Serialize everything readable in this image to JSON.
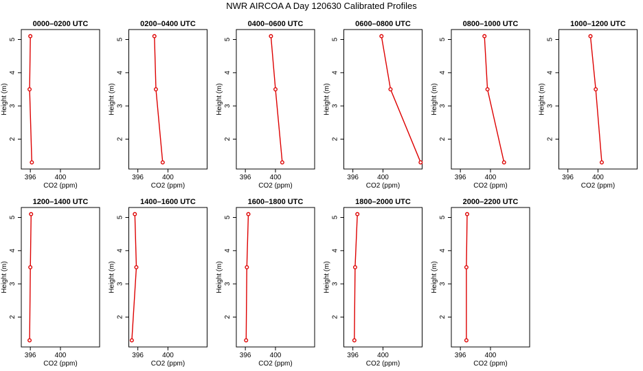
{
  "figure": {
    "title": "NWR AIRCOA A  Day 120630  Calibrated Profiles"
  },
  "chart_data": [
    {
      "type": "line",
      "title": "0000–0200 UTC",
      "xlabel": "CO2 (ppm)",
      "ylabel": "Height (m)",
      "xlim": [
        394.8,
        405.2
      ],
      "ylim": [
        1.1,
        5.3
      ],
      "xticks": [
        396,
        400
      ],
      "yticks": [
        2,
        3,
        4,
        5
      ],
      "color": "#dd0000",
      "points": [
        {
          "x": 396.2,
          "y": 1.3
        },
        {
          "x": 395.9,
          "y": 3.5
        },
        {
          "x": 396.0,
          "y": 5.1
        }
      ]
    },
    {
      "type": "line",
      "title": "0200–0400 UTC",
      "xlabel": "CO2 (ppm)",
      "ylabel": "Height (m)",
      "xlim": [
        394.8,
        405.2
      ],
      "ylim": [
        1.1,
        5.3
      ],
      "xticks": [
        396,
        400
      ],
      "yticks": [
        2,
        3,
        4,
        5
      ],
      "color": "#dd0000",
      "points": [
        {
          "x": 399.3,
          "y": 1.3
        },
        {
          "x": 398.4,
          "y": 3.5
        },
        {
          "x": 398.2,
          "y": 5.1
        }
      ]
    },
    {
      "type": "line",
      "title": "0400–0600 UTC",
      "xlabel": "CO2 (ppm)",
      "ylabel": "Height (m)",
      "xlim": [
        394.8,
        405.2
      ],
      "ylim": [
        1.1,
        5.3
      ],
      "xticks": [
        396,
        400
      ],
      "yticks": [
        2,
        3,
        4,
        5
      ],
      "color": "#dd0000",
      "points": [
        {
          "x": 400.9,
          "y": 1.3
        },
        {
          "x": 400.0,
          "y": 3.5
        },
        {
          "x": 399.4,
          "y": 5.1
        }
      ]
    },
    {
      "type": "line",
      "title": "0600–0800 UTC",
      "xlabel": "CO2 (ppm)",
      "ylabel": "Height (m)",
      "xlim": [
        394.8,
        405.2
      ],
      "ylim": [
        1.1,
        5.3
      ],
      "xticks": [
        396,
        400
      ],
      "yticks": [
        2,
        3,
        4,
        5
      ],
      "color": "#dd0000",
      "points": [
        {
          "x": 405.0,
          "y": 1.3
        },
        {
          "x": 401.0,
          "y": 3.5
        },
        {
          "x": 399.8,
          "y": 5.1
        }
      ]
    },
    {
      "type": "line",
      "title": "0800–1000 UTC",
      "xlabel": "CO2 (ppm)",
      "ylabel": "Height (m)",
      "xlim": [
        394.8,
        405.2
      ],
      "ylim": [
        1.1,
        5.3
      ],
      "xticks": [
        396,
        400
      ],
      "yticks": [
        2,
        3,
        4,
        5
      ],
      "color": "#dd0000",
      "points": [
        {
          "x": 401.8,
          "y": 1.3
        },
        {
          "x": 399.6,
          "y": 3.5
        },
        {
          "x": 399.2,
          "y": 5.1
        }
      ]
    },
    {
      "type": "line",
      "title": "1000–1200 UTC",
      "xlabel": "CO2 (ppm)",
      "ylabel": "Height (m)",
      "xlim": [
        394.8,
        405.2
      ],
      "ylim": [
        1.1,
        5.3
      ],
      "xticks": [
        396,
        400
      ],
      "yticks": [
        2,
        3,
        4,
        5
      ],
      "color": "#dd0000",
      "points": [
        {
          "x": 400.5,
          "y": 1.3
        },
        {
          "x": 399.7,
          "y": 3.5
        },
        {
          "x": 399.0,
          "y": 5.1
        }
      ]
    },
    {
      "type": "line",
      "title": "1200–1400 UTC",
      "xlabel": "CO2 (ppm)",
      "ylabel": "Height (m)",
      "xlim": [
        394.8,
        405.2
      ],
      "ylim": [
        1.1,
        5.3
      ],
      "xticks": [
        396,
        400
      ],
      "yticks": [
        2,
        3,
        4,
        5
      ],
      "color": "#dd0000",
      "points": [
        {
          "x": 395.9,
          "y": 1.3
        },
        {
          "x": 396.0,
          "y": 3.5
        },
        {
          "x": 396.1,
          "y": 5.1
        }
      ]
    },
    {
      "type": "line",
      "title": "1400–1600 UTC",
      "xlabel": "CO2 (ppm)",
      "ylabel": "Height (m)",
      "xlim": [
        394.8,
        405.2
      ],
      "ylim": [
        1.1,
        5.3
      ],
      "xticks": [
        396,
        400
      ],
      "yticks": [
        2,
        3,
        4,
        5
      ],
      "color": "#dd0000",
      "points": [
        {
          "x": 395.2,
          "y": 1.3
        },
        {
          "x": 395.8,
          "y": 3.5
        },
        {
          "x": 395.6,
          "y": 5.1
        }
      ]
    },
    {
      "type": "line",
      "title": "1600–1800 UTC",
      "xlabel": "CO2 (ppm)",
      "ylabel": "Height (m)",
      "xlim": [
        394.8,
        405.2
      ],
      "ylim": [
        1.1,
        5.3
      ],
      "xticks": [
        396,
        400
      ],
      "yticks": [
        2,
        3,
        4,
        5
      ],
      "color": "#dd0000",
      "points": [
        {
          "x": 396.1,
          "y": 1.3
        },
        {
          "x": 396.2,
          "y": 3.5
        },
        {
          "x": 396.4,
          "y": 5.1
        }
      ]
    },
    {
      "type": "line",
      "title": "1800–2000 UTC",
      "xlabel": "CO2 (ppm)",
      "ylabel": "Height (m)",
      "xlim": [
        394.8,
        405.2
      ],
      "ylim": [
        1.1,
        5.3
      ],
      "xticks": [
        396,
        400
      ],
      "yticks": [
        2,
        3,
        4,
        5
      ],
      "color": "#dd0000",
      "points": [
        {
          "x": 396.2,
          "y": 1.3
        },
        {
          "x": 396.3,
          "y": 3.5
        },
        {
          "x": 396.6,
          "y": 5.1
        }
      ]
    },
    {
      "type": "line",
      "title": "2000–2200 UTC",
      "xlabel": "CO2 (ppm)",
      "ylabel": "Height (m)",
      "xlim": [
        394.8,
        405.2
      ],
      "ylim": [
        1.1,
        5.3
      ],
      "xticks": [
        396,
        400
      ],
      "yticks": [
        2,
        3,
        4,
        5
      ],
      "color": "#dd0000",
      "points": [
        {
          "x": 396.8,
          "y": 1.3
        },
        {
          "x": 396.8,
          "y": 3.5
        },
        {
          "x": 396.9,
          "y": 5.1
        }
      ]
    }
  ]
}
